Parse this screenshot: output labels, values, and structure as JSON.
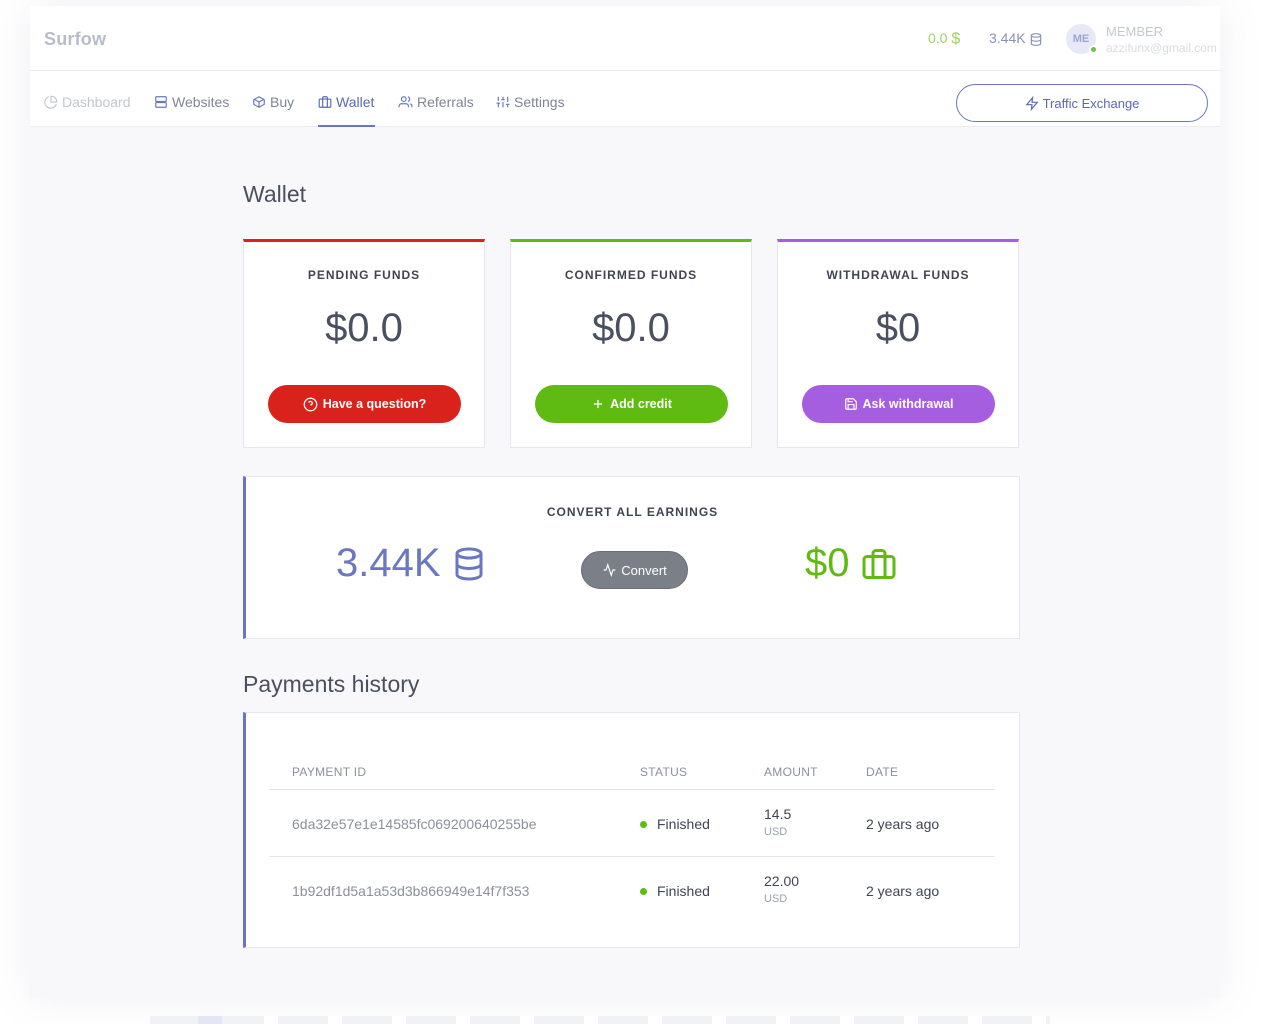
{
  "header": {
    "brand": "Surfow",
    "balance_dollar": "0.0",
    "balance_dollar_symbol": "$",
    "balance_credits": "3.44K",
    "avatar_initials": "ME",
    "user_role": "MEMBER",
    "user_email": "azzifunx@gmail.com"
  },
  "nav": {
    "items": [
      {
        "label": "Dashboard",
        "icon": "pie-chart-icon"
      },
      {
        "label": "Websites",
        "icon": "server-icon"
      },
      {
        "label": "Buy",
        "icon": "box-icon"
      },
      {
        "label": "Wallet",
        "icon": "briefcase-icon"
      },
      {
        "label": "Referrals",
        "icon": "users-icon"
      },
      {
        "label": "Settings",
        "icon": "sliders-icon"
      }
    ],
    "active": "Wallet",
    "traffic_button": "Traffic Exchange"
  },
  "wallet": {
    "title": "Wallet",
    "cards": [
      {
        "label": "PENDING FUNDS",
        "value": "$0.0",
        "button": "Have a question?",
        "color": "#d9221c",
        "icon": "help-circle-icon"
      },
      {
        "label": "CONFIRMED FUNDS",
        "value": "$0.0",
        "button": "Add credit",
        "color": "#5fba12",
        "icon": "plus-icon"
      },
      {
        "label": "WITHDRAWAL FUNDS",
        "value": "$0",
        "button": "Ask withdrawal",
        "color": "#a55ee0",
        "icon": "save-icon"
      }
    ]
  },
  "convert": {
    "title": "CONVERT ALL EARNINGS",
    "credits": "3.44K",
    "button": "Convert",
    "dollars": "$0"
  },
  "history": {
    "title": "Payments history",
    "columns": [
      "PAYMENT ID",
      "STATUS",
      "AMOUNT",
      "DATE"
    ],
    "rows": [
      {
        "id": "6da32e57e1e14585fc069200640255be",
        "status": "Finished",
        "amount": "14.5",
        "currency": "USD",
        "date": "2 years ago"
      },
      {
        "id": "1b92df1d5a1a53d3b866949e14f7f353",
        "status": "Finished",
        "amount": "22.00",
        "currency": "USD",
        "date": "2 years ago"
      }
    ]
  },
  "colors": {
    "accent": "#6a76c2",
    "pending": "#d9221c",
    "confirmed": "#5fba12",
    "withdrawal": "#a55ee0"
  }
}
